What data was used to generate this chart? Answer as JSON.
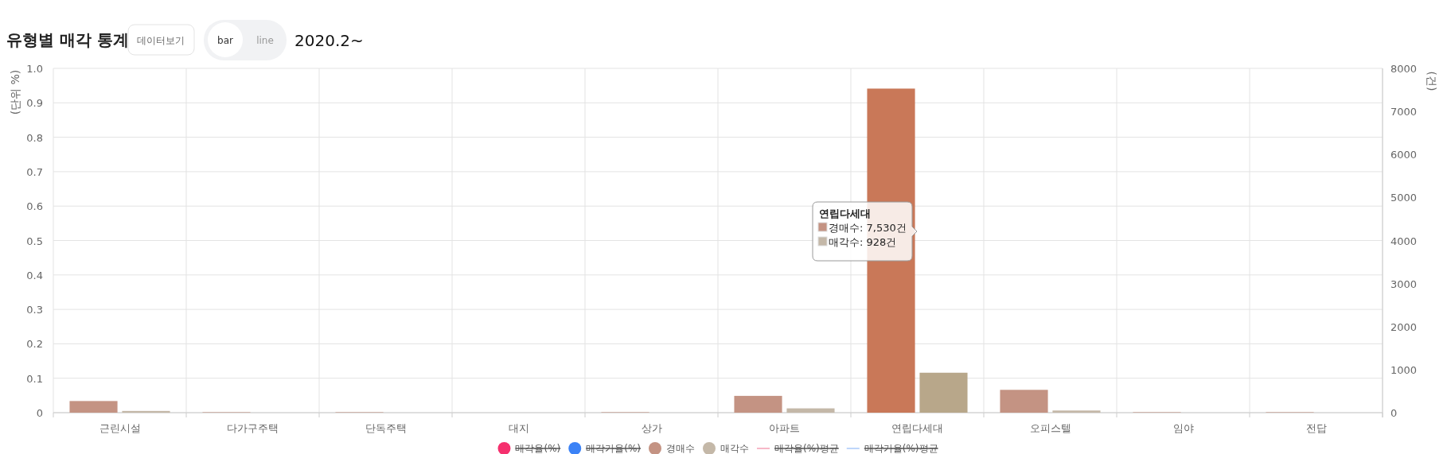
{
  "chart_data": {
    "type": "bar",
    "title": "유형별 매각 통계",
    "subtitle": "2020.2~",
    "ylabel": "(단위 %)",
    "y2label": "(건)",
    "categories": [
      "근린시설",
      "다가구주택",
      "단독주택",
      "대지",
      "상가",
      "아파트",
      "연립다세대",
      "오피스텔",
      "임야",
      "전답"
    ],
    "series": [
      {
        "name": "매각율(%)",
        "type": "line",
        "marker": "circle",
        "color": "#f5306e",
        "values": [
          null,
          null,
          null,
          null,
          null,
          null,
          null,
          null,
          null,
          null
        ]
      },
      {
        "name": "매각가율(%)",
        "type": "line",
        "marker": "circle",
        "color": "#3b82f6",
        "values": [
          null,
          null,
          null,
          null,
          null,
          null,
          null,
          null,
          null,
          null
        ]
      },
      {
        "name": "경매수",
        "type": "bar",
        "axis": "y2",
        "color": "#c49383",
        "colors": [
          "#c49383",
          "#c49383",
          "#c49383",
          "#c49383",
          "#c49383",
          "#c49383",
          "#c97858",
          "#c49383",
          "#c49383",
          "#c49383"
        ],
        "values": [
          270,
          10,
          10,
          0,
          10,
          390,
          7530,
          530,
          10,
          10
        ]
      },
      {
        "name": "매각수",
        "type": "bar",
        "axis": "y2",
        "color": "#c4b8a8",
        "colors": [
          "#c4b8a8",
          "#c4b8a8",
          "#c4b8a8",
          "#c4b8a8",
          "#c4b8a8",
          "#c4b8a8",
          "#b8a78a",
          "#c4b8a8",
          "#c4b8a8",
          "#c4b8a8"
        ],
        "values": [
          40,
          0,
          0,
          0,
          0,
          100,
          928,
          50,
          0,
          0
        ]
      },
      {
        "name": "매각율(%)평균",
        "type": "line",
        "marker": "none",
        "color": "#f4a0b4",
        "values": [
          null,
          null,
          null,
          null,
          null,
          null,
          null,
          null,
          null,
          null
        ]
      },
      {
        "name": "매각가율(%)평균",
        "type": "line",
        "marker": "none",
        "color": "#a8c8f8",
        "values": [
          null,
          null,
          null,
          null,
          null,
          null,
          null,
          null,
          null,
          null
        ]
      }
    ],
    "ylim": [
      0,
      1
    ],
    "yticks": [
      0,
      0.1,
      0.2,
      0.3,
      0.4,
      0.5,
      0.6,
      0.7,
      0.8,
      0.9,
      {
        "value": 1,
        "label": "1.0"
      }
    ],
    "y2lim": [
      0,
      8000
    ],
    "y2ticks": [
      0,
      1000,
      2000,
      3000,
      4000,
      5000,
      6000,
      7000,
      8000
    ],
    "grid": true,
    "legend": "bottom",
    "annotations": [
      "데이터보기",
      "bar",
      "line",
      "연립다세대",
      "경매수: 7,530건",
      "매각수: 928건"
    ]
  }
}
